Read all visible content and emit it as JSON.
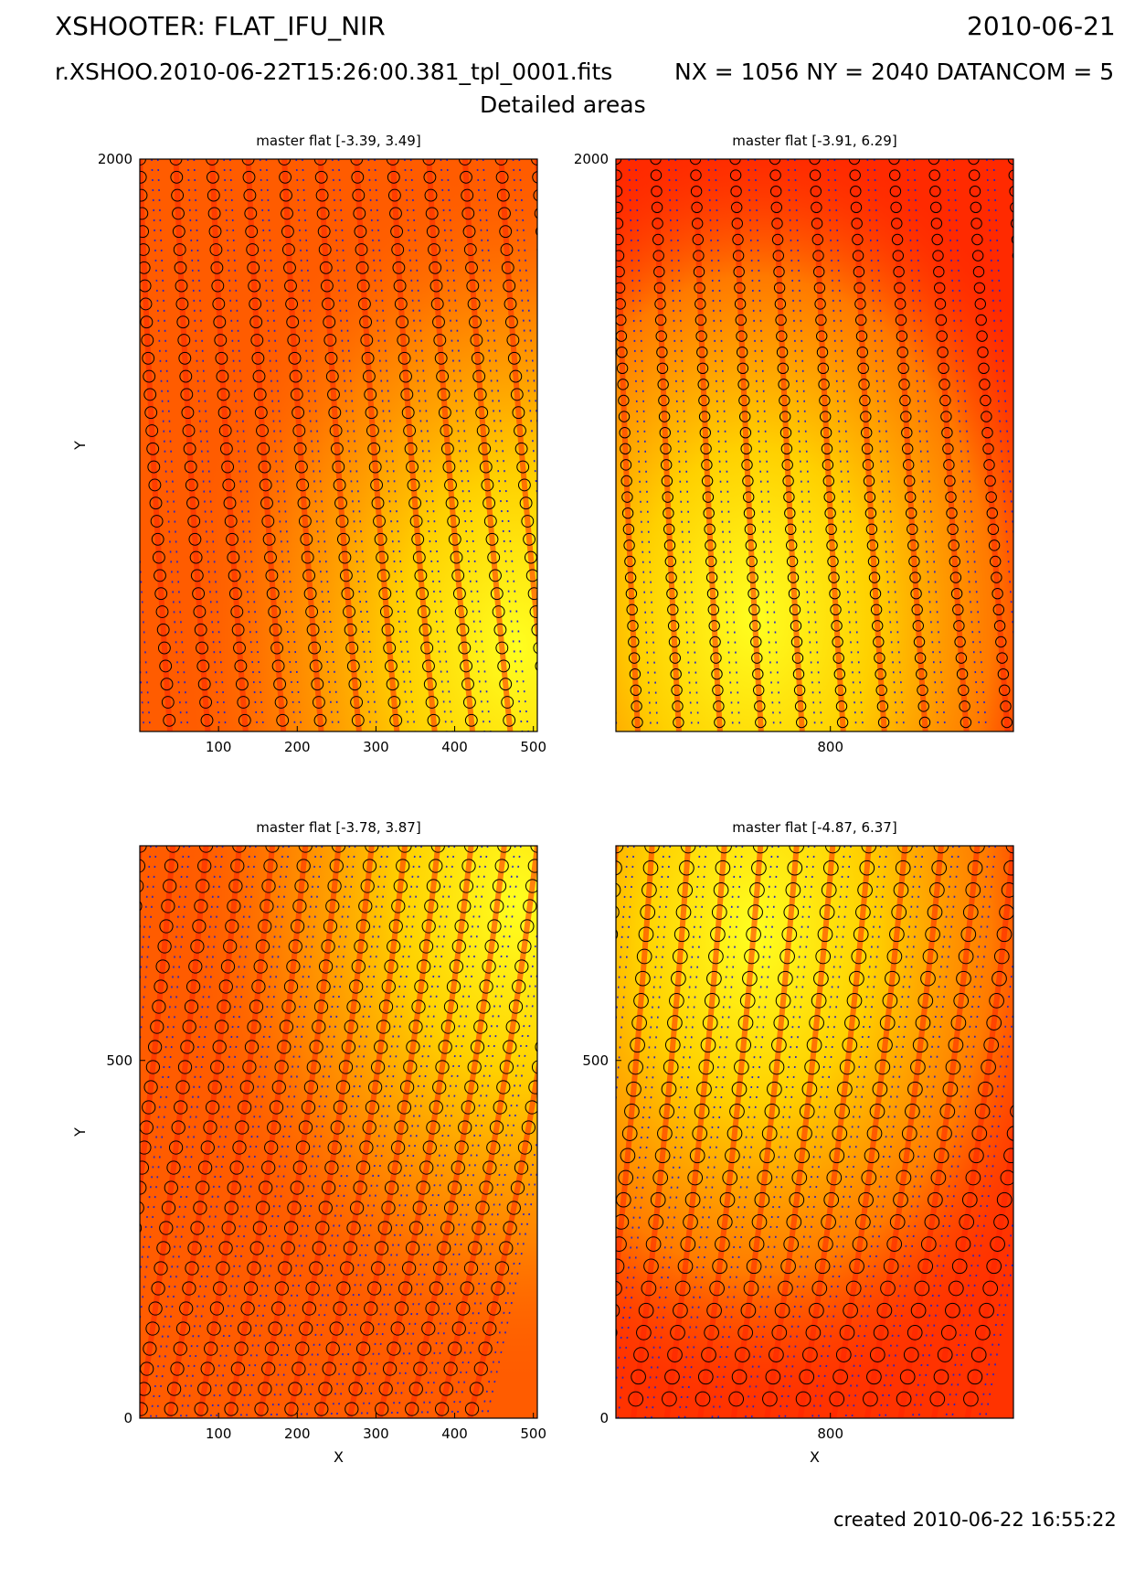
{
  "header": {
    "title": "XSHOOTER: FLAT_IFU_NIR",
    "date": "2010-06-21",
    "filename": "r.XSHOO.2010-06-22T15:26:00.381_tpl_0001.fits",
    "dims": "NX = 1056 NY = 2040 DATANCOM = 5",
    "subtitle": "Detailed areas"
  },
  "footer": {
    "created": "created 2010-06-22 16:55:22"
  },
  "colors": {
    "red": "#ff1a00",
    "orange": "#ff5500",
    "yellow": "#ffff00",
    "marker": "#000000",
    "trace_dots": "#2222cc"
  },
  "chart_data": [
    {
      "type": "heatmap",
      "title": "master flat [-3.39, 3.49]",
      "xlabel": "",
      "ylabel": "Y",
      "xlim": [
        0,
        505
      ],
      "ylim": [
        1300,
        2000
      ],
      "xticks": [
        100,
        200,
        300,
        400,
        500
      ],
      "yticks": [
        2000
      ],
      "colormap": "hot",
      "grid": false,
      "legend": "none"
    },
    {
      "type": "heatmap",
      "title": "master flat [-3.91, 6.29]",
      "xlabel": "",
      "ylabel": "",
      "xlim": [
        500,
        1056
      ],
      "ylim": [
        1300,
        2000
      ],
      "xticks": [
        800
      ],
      "yticks": [
        2000
      ],
      "colormap": "hot",
      "grid": false,
      "legend": "none"
    },
    {
      "type": "heatmap",
      "title": "master flat [-3.78, 3.87]",
      "xlabel": "X",
      "ylabel": "Y",
      "xlim": [
        0,
        505
      ],
      "ylim": [
        0,
        800
      ],
      "xticks": [
        100,
        200,
        300,
        400,
        500
      ],
      "yticks": [
        0,
        500
      ],
      "colormap": "hot",
      "grid": false,
      "legend": "none"
    },
    {
      "type": "heatmap",
      "title": "master flat [-4.87, 6.37]",
      "xlabel": "X",
      "ylabel": "",
      "xlim": [
        500,
        1056
      ],
      "ylim": [
        0,
        800
      ],
      "xticks": [
        800
      ],
      "yticks": [
        0,
        500
      ],
      "colormap": "hot",
      "grid": false,
      "legend": "none"
    }
  ]
}
